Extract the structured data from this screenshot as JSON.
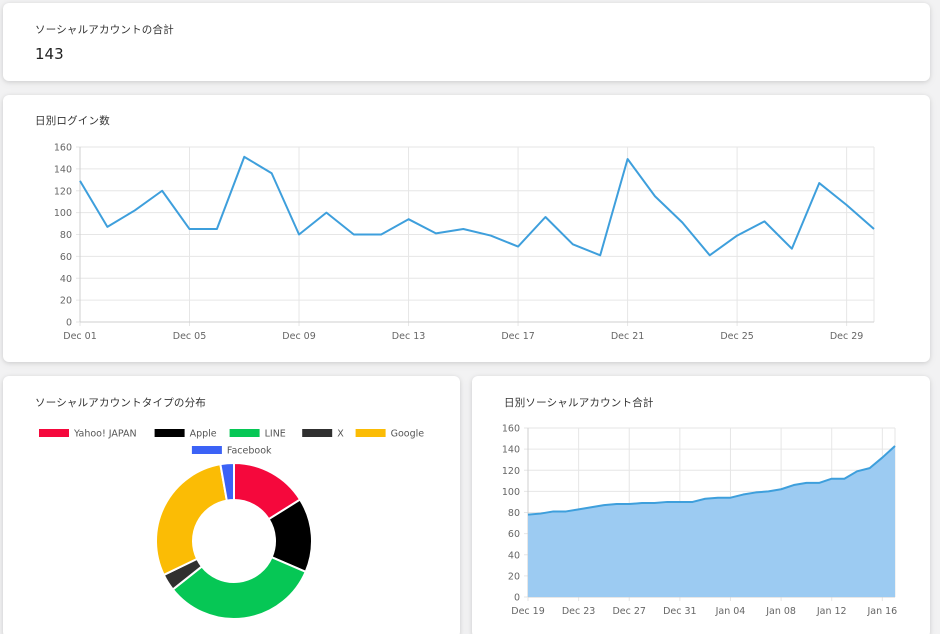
{
  "cards": {
    "total_accounts": {
      "title": "ソーシャルアカウントの合計",
      "value": "143"
    },
    "daily_logins": {
      "title": "日別ログイン数"
    },
    "account_type_distribution": {
      "title": "ソーシャルアカウントタイプの分布"
    },
    "daily_accounts": {
      "title": "日別ソーシャルアカウント合計"
    }
  },
  "colors": {
    "line_series": "#3e9fdc",
    "area_fill": "#9ccbf2",
    "grid": "#e6e6e6",
    "axis_text": "#666666"
  },
  "chart_data": [
    {
      "id": "daily_logins",
      "type": "line",
      "ylim": [
        0,
        160
      ],
      "y_ticks": [
        0,
        20,
        40,
        60,
        80,
        100,
        120,
        140,
        160
      ],
      "x_tick_labels": [
        "Dec 01",
        "Dec 05",
        "Dec 09",
        "Dec 13",
        "Dec 17",
        "Dec 21",
        "Dec 25",
        "Dec 29"
      ],
      "x_tick_day_index": [
        0,
        4,
        8,
        12,
        16,
        20,
        24,
        28
      ],
      "grid": true,
      "series": [
        {
          "color": "#3e9fdc",
          "values": [
            129,
            87,
            102,
            120,
            85,
            85,
            151,
            136,
            80,
            100,
            80,
            80,
            94,
            81,
            85,
            79,
            69,
            96,
            71,
            61,
            149,
            115,
            91,
            61,
            79,
            92,
            67,
            127,
            107,
            85
          ]
        }
      ]
    },
    {
      "id": "account_type_distribution",
      "type": "pie",
      "donut": true,
      "legend_position": "top",
      "labels": [
        "Yahoo! JAPAN",
        "Apple",
        "LINE",
        "X",
        "Google",
        "Facebook"
      ],
      "colors": [
        "#f5083c",
        "#000000",
        "#06c755",
        "#303030",
        "#fbbc05",
        "#3b62f6"
      ],
      "values": [
        23,
        22,
        47,
        5,
        42,
        4
      ]
    },
    {
      "id": "daily_accounts",
      "type": "area",
      "ylim": [
        0,
        160
      ],
      "y_ticks": [
        0,
        20,
        40,
        60,
        80,
        100,
        120,
        140,
        160
      ],
      "x_tick_labels": [
        "Dec 19",
        "Dec 23",
        "Dec 27",
        "Dec 31",
        "Jan 04",
        "Jan 08",
        "Jan 12",
        "Jan 16"
      ],
      "x_tick_day_index": [
        0,
        4,
        8,
        12,
        16,
        20,
        24,
        28
      ],
      "grid": true,
      "series": [
        {
          "color": "#3e9fdc",
          "fill": "#9ccbf2",
          "values": [
            78,
            79,
            81,
            81,
            83,
            85,
            87,
            88,
            88,
            89,
            89,
            90,
            90,
            90,
            93,
            94,
            94,
            97,
            99,
            100,
            102,
            106,
            108,
            108,
            112,
            112,
            119,
            122,
            132,
            143
          ]
        }
      ]
    }
  ]
}
